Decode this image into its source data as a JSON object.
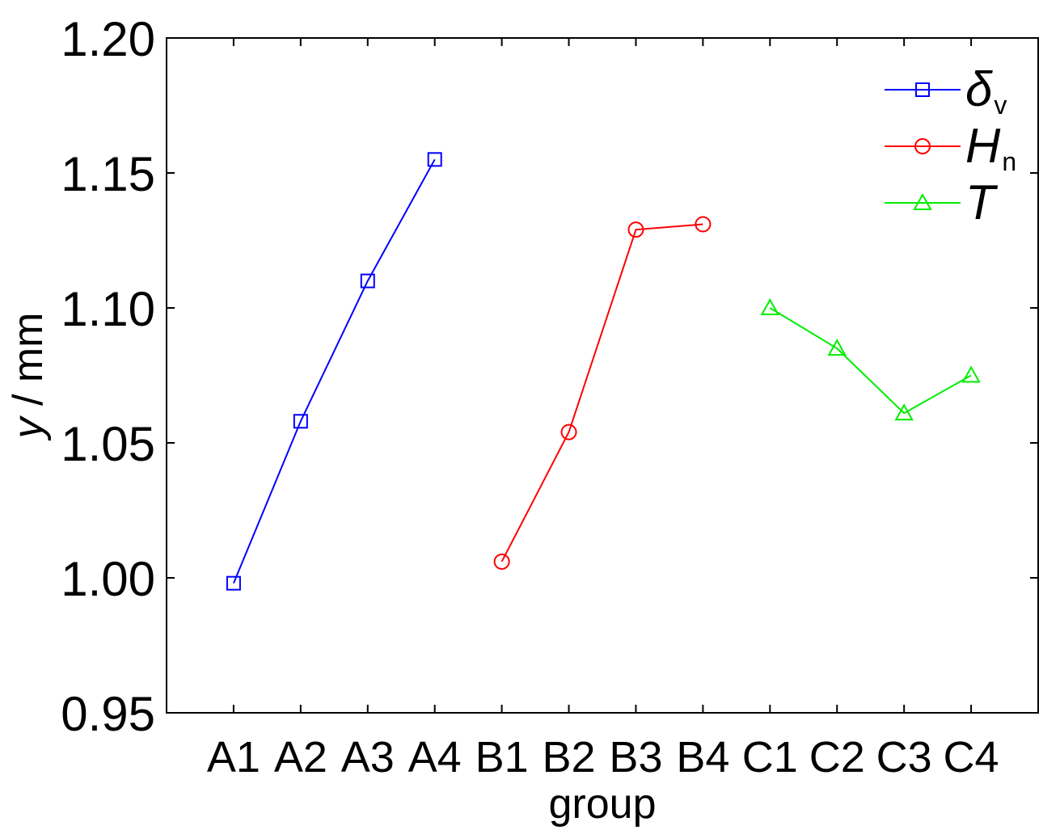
{
  "chart_data": {
    "type": "line",
    "title": "",
    "xlabel": "group",
    "ylabel_var": "y",
    "ylabel_unit": " / mm",
    "ylim": [
      0.95,
      1.2
    ],
    "yticks": [
      "0.95",
      "1.00",
      "1.05",
      "1.10",
      "1.15",
      "1.20"
    ],
    "categories": [
      "A1",
      "A2",
      "A3",
      "A4",
      "B1",
      "B2",
      "B3",
      "B4",
      "C1",
      "C2",
      "C3",
      "C4"
    ],
    "grid": false,
    "legend_position": "top-right",
    "series": [
      {
        "name_main": "δ",
        "name_sub": "v",
        "color": "#0000ff",
        "marker": "square",
        "points": [
          {
            "x": "A1",
            "y": 0.998
          },
          {
            "x": "A2",
            "y": 1.058
          },
          {
            "x": "A3",
            "y": 1.11
          },
          {
            "x": "A4",
            "y": 1.155
          }
        ]
      },
      {
        "name_main": "H",
        "name_sub": "n",
        "color": "#ff0000",
        "marker": "circle",
        "points": [
          {
            "x": "B1",
            "y": 1.006
          },
          {
            "x": "B2",
            "y": 1.054
          },
          {
            "x": "B3",
            "y": 1.129
          },
          {
            "x": "B4",
            "y": 1.131
          }
        ]
      },
      {
        "name_main": "T",
        "name_sub": "",
        "color": "#00ee00",
        "marker": "triangle",
        "points": [
          {
            "x": "C1",
            "y": 1.1
          },
          {
            "x": "C2",
            "y": 1.085
          },
          {
            "x": "C3",
            "y": 1.061
          },
          {
            "x": "C4",
            "y": 1.075
          }
        ]
      }
    ]
  }
}
